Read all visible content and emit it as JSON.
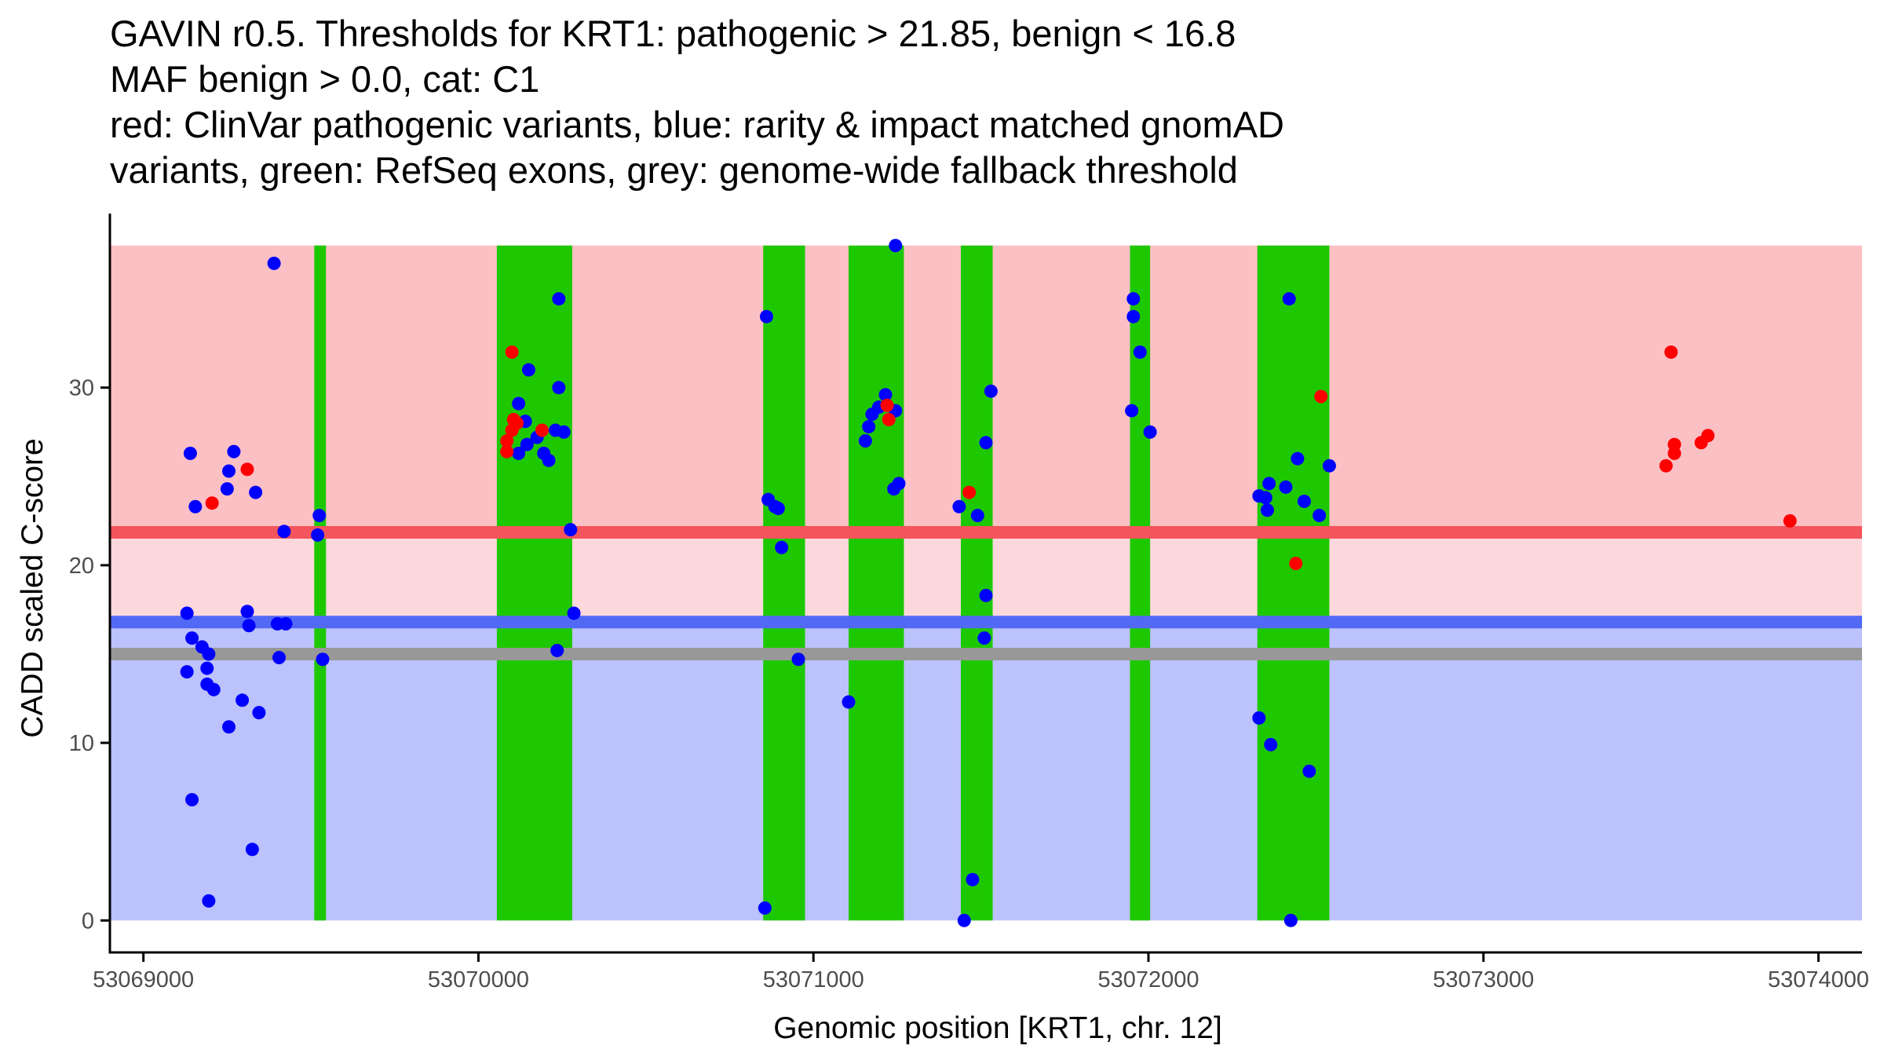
{
  "chart_data": {
    "type": "scatter",
    "title_lines": [
      "GAVIN r0.5. Thresholds for KRT1: pathogenic > 21.85, benign < 16.8",
      "MAF benign > 0.0, cat: C1",
      "red: ClinVar pathogenic variants, blue: rarity & impact matched gnomAD",
      "variants, green: RefSeq exons, grey: genome-wide fallback threshold"
    ],
    "xlabel": "Genomic position [KRT1, chr. 12]",
    "ylabel": "CADD scaled C-score",
    "xlim": [
      53068900,
      53074130
    ],
    "ylim": [
      -1.8,
      39.8
    ],
    "x_ticks": [
      53069000,
      53070000,
      53071000,
      53072000,
      53073000,
      53074000
    ],
    "x_tick_labels": [
      "53069000",
      "53070000",
      "53071000",
      "53072000",
      "53073000",
      "53074000"
    ],
    "y_ticks": [
      0,
      10,
      20,
      30
    ],
    "y_tick_labels": [
      "0",
      "10",
      "20",
      "30"
    ],
    "region_top": 38,
    "thresholds": {
      "pathogenic": 21.85,
      "benign": 16.8,
      "fallback": 15
    },
    "colors": {
      "pathogenic_zone": "#fbc0c4",
      "mid_zone": "#fcd8dc",
      "benign_zone": "#bcc2fb",
      "exon": "#1ec800",
      "pathogenic_line": "#f4545c",
      "benign_line": "#5269f5",
      "fallback_line": "#989898",
      "clinvar": "#ff0000",
      "gnomad": "#0000ff"
    },
    "exons": [
      [
        53069510,
        53069545
      ],
      [
        53070055,
        53070280
      ],
      [
        53070850,
        53070975
      ],
      [
        53071105,
        53071270
      ],
      [
        53071440,
        53071535
      ],
      [
        53071945,
        53072005
      ],
      [
        53072325,
        53072540
      ]
    ],
    "series": [
      {
        "name": "ClinVar pathogenic variants",
        "color": "#ff0000",
        "points": [
          [
            53069205,
            23.5
          ],
          [
            53069310,
            25.4
          ],
          [
            53070085,
            26.4
          ],
          [
            53070085,
            27
          ],
          [
            53070100,
            32
          ],
          [
            53070100,
            27.6
          ],
          [
            53070105,
            28.2
          ],
          [
            53070115,
            28
          ],
          [
            53070190,
            27.6
          ],
          [
            53071220,
            29
          ],
          [
            53071225,
            28.2
          ],
          [
            53071465,
            24.1
          ],
          [
            53072440,
            20.1
          ],
          [
            53072515,
            29.5
          ],
          [
            53073545,
            25.6
          ],
          [
            53073560,
            32
          ],
          [
            53073570,
            26.8
          ],
          [
            53073570,
            26.3
          ],
          [
            53073650,
            26.9
          ],
          [
            53073670,
            27.3
          ],
          [
            53073915,
            22.5
          ]
        ]
      },
      {
        "name": "rarity & impact matched gnomAD variants",
        "color": "#0000ff",
        "points": [
          [
            53069390,
            37
          ],
          [
            53069270,
            26.4
          ],
          [
            53069140,
            26.3
          ],
          [
            53069255,
            25.3
          ],
          [
            53069155,
            23.3
          ],
          [
            53069250,
            24.3
          ],
          [
            53069335,
            24.1
          ],
          [
            53069420,
            21.9
          ],
          [
            53069525,
            22.8
          ],
          [
            53069520,
            21.7
          ],
          [
            53069130,
            17.3
          ],
          [
            53069145,
            15.9
          ],
          [
            53069175,
            15.4
          ],
          [
            53069195,
            15
          ],
          [
            53069190,
            14.2
          ],
          [
            53069190,
            13.3
          ],
          [
            53069210,
            13
          ],
          [
            53069310,
            17.4
          ],
          [
            53069315,
            16.6
          ],
          [
            53069400,
            16.7
          ],
          [
            53069425,
            16.7
          ],
          [
            53069405,
            14.8
          ],
          [
            53069130,
            14
          ],
          [
            53069295,
            12.4
          ],
          [
            53069345,
            11.7
          ],
          [
            53069255,
            10.9
          ],
          [
            53069145,
            6.8
          ],
          [
            53069195,
            1.1
          ],
          [
            53069325,
            4
          ],
          [
            53069535,
            14.7
          ],
          [
            53070240,
            35
          ],
          [
            53070150,
            31
          ],
          [
            53070120,
            29.1
          ],
          [
            53070240,
            30
          ],
          [
            53070140,
            28.1
          ],
          [
            53070120,
            26.3
          ],
          [
            53070145,
            26.8
          ],
          [
            53070175,
            27.2
          ],
          [
            53070195,
            26.3
          ],
          [
            53070210,
            25.9
          ],
          [
            53070230,
            27.6
          ],
          [
            53070255,
            27.5
          ],
          [
            53070275,
            22
          ],
          [
            53070285,
            17.3
          ],
          [
            53070235,
            15.2
          ],
          [
            53070860,
            34
          ],
          [
            53070865,
            23.7
          ],
          [
            53070885,
            23.3
          ],
          [
            53070895,
            23.2
          ],
          [
            53070905,
            21
          ],
          [
            53070955,
            14.7
          ],
          [
            53070855,
            0.7
          ],
          [
            53071245,
            38
          ],
          [
            53071215,
            29.6
          ],
          [
            53071175,
            28.5
          ],
          [
            53071195,
            28.9
          ],
          [
            53071165,
            27.8
          ],
          [
            53071245,
            28.7
          ],
          [
            53071155,
            27
          ],
          [
            53071240,
            24.3
          ],
          [
            53071255,
            24.6
          ],
          [
            53071105,
            12.3
          ],
          [
            53071530,
            29.8
          ],
          [
            53071515,
            26.9
          ],
          [
            53071435,
            23.3
          ],
          [
            53071490,
            22.8
          ],
          [
            53071515,
            18.3
          ],
          [
            53071510,
            15.9
          ],
          [
            53071475,
            2.3
          ],
          [
            53071450,
            0
          ],
          [
            53071955,
            35
          ],
          [
            53071955,
            34
          ],
          [
            53071975,
            32
          ],
          [
            53071950,
            28.7
          ],
          [
            53072005,
            27.5
          ],
          [
            53072420,
            35
          ],
          [
            53072445,
            26
          ],
          [
            53072540,
            25.6
          ],
          [
            53072330,
            23.9
          ],
          [
            53072360,
            24.6
          ],
          [
            53072410,
            24.4
          ],
          [
            53072350,
            23.8
          ],
          [
            53072355,
            23.1
          ],
          [
            53072465,
            23.6
          ],
          [
            53072510,
            22.8
          ],
          [
            53072330,
            11.4
          ],
          [
            53072365,
            9.9
          ],
          [
            53072480,
            8.4
          ],
          [
            53072425,
            0
          ]
        ]
      }
    ]
  }
}
